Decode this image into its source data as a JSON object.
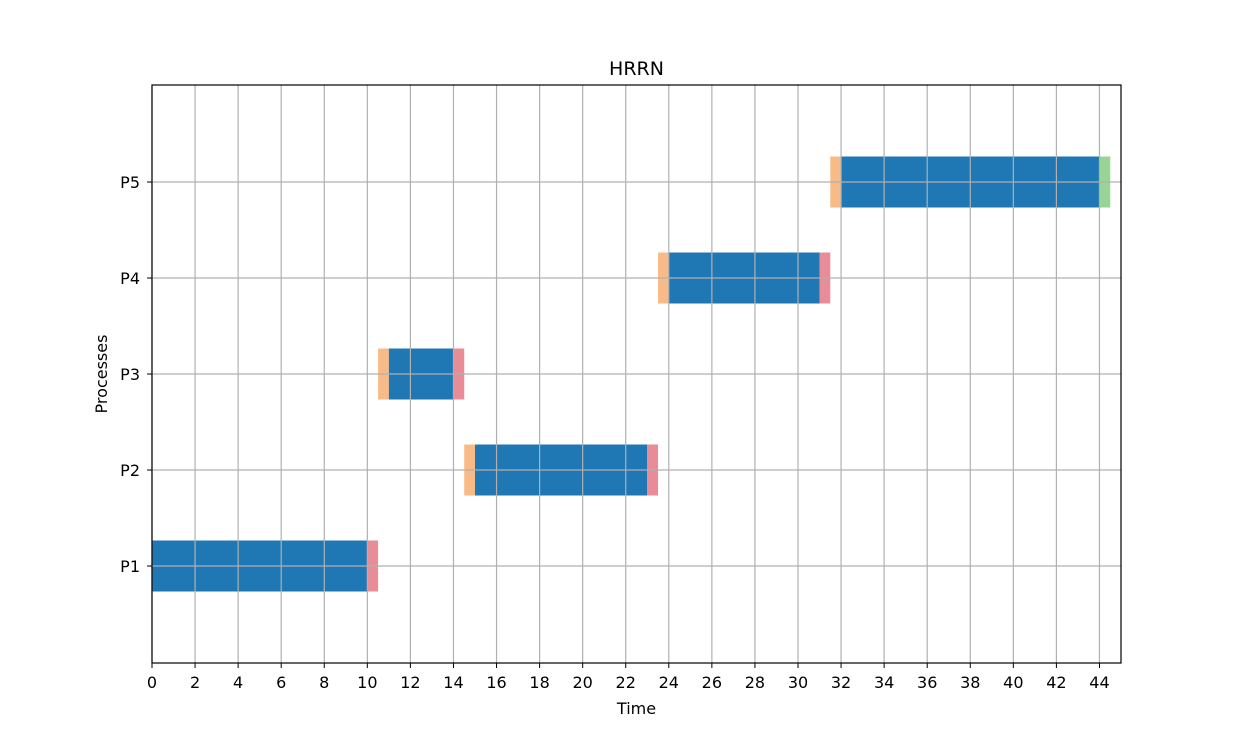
{
  "chart_data": {
    "type": "gantt",
    "title": "HRRN",
    "xlabel": "Time",
    "ylabel": "Processes",
    "xlim": [
      0,
      45
    ],
    "x_ticks": [
      0,
      2,
      4,
      6,
      8,
      10,
      12,
      14,
      16,
      18,
      20,
      22,
      24,
      26,
      28,
      30,
      32,
      34,
      36,
      38,
      40,
      42,
      44
    ],
    "categories": [
      "P1",
      "P2",
      "P3",
      "P4",
      "P5"
    ],
    "grid": true,
    "colors": {
      "pre": "#f8bb87",
      "run": "#1f77b4",
      "post": "#e88c97",
      "end": "#98d493",
      "grid": "#b0b0b0"
    },
    "segments": [
      {
        "process": "P1",
        "kind": "run",
        "start": 0,
        "end": 10
      },
      {
        "process": "P1",
        "kind": "post",
        "start": 10,
        "end": 10.5
      },
      {
        "process": "P3",
        "kind": "pre",
        "start": 10.5,
        "end": 11
      },
      {
        "process": "P3",
        "kind": "run",
        "start": 11,
        "end": 14
      },
      {
        "process": "P3",
        "kind": "post",
        "start": 14,
        "end": 14.5
      },
      {
        "process": "P2",
        "kind": "pre",
        "start": 14.5,
        "end": 15
      },
      {
        "process": "P2",
        "kind": "run",
        "start": 15,
        "end": 23
      },
      {
        "process": "P2",
        "kind": "post",
        "start": 23,
        "end": 23.5
      },
      {
        "process": "P4",
        "kind": "pre",
        "start": 23.5,
        "end": 24
      },
      {
        "process": "P4",
        "kind": "run",
        "start": 24,
        "end": 31
      },
      {
        "process": "P4",
        "kind": "post",
        "start": 31,
        "end": 31.5
      },
      {
        "process": "P5",
        "kind": "pre",
        "start": 31.5,
        "end": 32
      },
      {
        "process": "P5",
        "kind": "run",
        "start": 32,
        "end": 44
      },
      {
        "process": "P5",
        "kind": "end",
        "start": 44,
        "end": 44.5
      }
    ]
  }
}
